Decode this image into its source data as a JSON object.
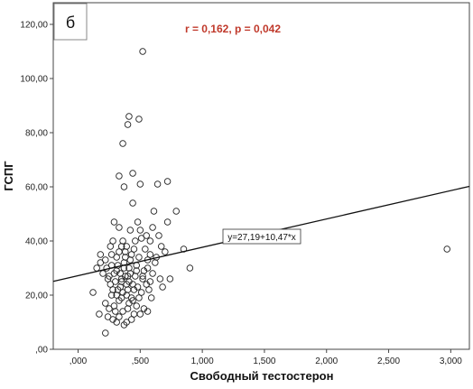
{
  "chart_data": {
    "type": "scatter",
    "panel_label": "б",
    "stats_text": "r = 0,162, p = 0,042",
    "xlabel": "Свободный тестостерон",
    "ylabel": "ГСПГ",
    "xlim": [
      -0.2,
      3.15
    ],
    "ylim": [
      0,
      128
    ],
    "x_ticks": [
      0,
      0.5,
      1,
      1.5,
      2,
      2.5,
      3
    ],
    "x_tick_labels": [
      ",000",
      ",500",
      "1,000",
      "1,500",
      "2,000",
      "2,500",
      "3,000"
    ],
    "y_ticks": [
      0,
      20,
      40,
      60,
      80,
      100,
      120
    ],
    "y_tick_labels": [
      ",00",
      "20,00",
      "40,00",
      "60,00",
      "80,00",
      "100,00",
      "120,00"
    ],
    "grid": false,
    "regression": {
      "intercept": 27.19,
      "slope": 10.47,
      "label": "y=27,19+10,47*x"
    },
    "points": [
      [
        0.52,
        110
      ],
      [
        0.41,
        86
      ],
      [
        0.4,
        83
      ],
      [
        0.49,
        85
      ],
      [
        0.36,
        76
      ],
      [
        0.44,
        65
      ],
      [
        0.33,
        64
      ],
      [
        0.37,
        60
      ],
      [
        0.5,
        61
      ],
      [
        0.64,
        61
      ],
      [
        0.72,
        62
      ],
      [
        0.79,
        51
      ],
      [
        0.61,
        51
      ],
      [
        0.44,
        54
      ],
      [
        0.29,
        47
      ],
      [
        0.33,
        45
      ],
      [
        0.42,
        44
      ],
      [
        0.55,
        42
      ],
      [
        0.65,
        42
      ],
      [
        0.72,
        47
      ],
      [
        0.26,
        38
      ],
      [
        0.28,
        40
      ],
      [
        0.35,
        38
      ],
      [
        0.39,
        38
      ],
      [
        0.46,
        40
      ],
      [
        0.51,
        41
      ],
      [
        0.58,
        40
      ],
      [
        0.67,
        38
      ],
      [
        0.7,
        36
      ],
      [
        0.85,
        37
      ],
      [
        0.9,
        30
      ],
      [
        2.97,
        37
      ],
      [
        0.18,
        35
      ],
      [
        0.22,
        33
      ],
      [
        0.31,
        34
      ],
      [
        0.38,
        36
      ],
      [
        0.43,
        35
      ],
      [
        0.49,
        34
      ],
      [
        0.56,
        33
      ],
      [
        0.62,
        32
      ],
      [
        0.23,
        30
      ],
      [
        0.27,
        31
      ],
      [
        0.32,
        31
      ],
      [
        0.37,
        32
      ],
      [
        0.41,
        30
      ],
      [
        0.47,
        31
      ],
      [
        0.53,
        29
      ],
      [
        0.6,
        28
      ],
      [
        0.15,
        30
      ],
      [
        0.2,
        28
      ],
      [
        0.25,
        27
      ],
      [
        0.29,
        28
      ],
      [
        0.34,
        28
      ],
      [
        0.38,
        27
      ],
      [
        0.42,
        28
      ],
      [
        0.46,
        27
      ],
      [
        0.52,
        26
      ],
      [
        0.58,
        25
      ],
      [
        0.66,
        26
      ],
      [
        0.74,
        26
      ],
      [
        0.3,
        25
      ],
      [
        0.35,
        25
      ],
      [
        0.39,
        24
      ],
      [
        0.44,
        24
      ],
      [
        0.48,
        23
      ],
      [
        0.55,
        24
      ],
      [
        0.28,
        22
      ],
      [
        0.32,
        22
      ],
      [
        0.36,
        21
      ],
      [
        0.4,
        22
      ],
      [
        0.45,
        22
      ],
      [
        0.51,
        21
      ],
      [
        0.57,
        22
      ],
      [
        0.27,
        20
      ],
      [
        0.31,
        20
      ],
      [
        0.35,
        19
      ],
      [
        0.39,
        20
      ],
      [
        0.43,
        19
      ],
      [
        0.49,
        19
      ],
      [
        0.12,
        21
      ],
      [
        0.33,
        18
      ],
      [
        0.41,
        17
      ],
      [
        0.47,
        16
      ],
      [
        0.53,
        15
      ],
      [
        0.22,
        17
      ],
      [
        0.25,
        15
      ],
      [
        0.3,
        14
      ],
      [
        0.36,
        14
      ],
      [
        0.4,
        15
      ],
      [
        0.45,
        13
      ],
      [
        0.5,
        13
      ],
      [
        0.56,
        14
      ],
      [
        0.17,
        13
      ],
      [
        0.24,
        12
      ],
      [
        0.33,
        12
      ],
      [
        0.39,
        10
      ],
      [
        0.43,
        11
      ],
      [
        0.28,
        11
      ],
      [
        0.31,
        10
      ],
      [
        0.37,
        9
      ],
      [
        0.22,
        6
      ],
      [
        0.35,
        26
      ],
      [
        0.42,
        33
      ],
      [
        0.63,
        34
      ],
      [
        0.6,
        45
      ],
      [
        0.26,
        24
      ],
      [
        0.37,
        30
      ],
      [
        0.54,
        37
      ],
      [
        0.47,
        29
      ],
      [
        0.33,
        36
      ],
      [
        0.18,
        32
      ],
      [
        0.59,
        19
      ],
      [
        0.68,
        23
      ],
      [
        0.48,
        47
      ],
      [
        0.4,
        27
      ],
      [
        0.29,
        16
      ],
      [
        0.44,
        18
      ],
      [
        0.34,
        23
      ],
      [
        0.52,
        27
      ],
      [
        0.24,
        26
      ],
      [
        0.38,
        34
      ],
      [
        0.45,
        37
      ],
      [
        0.56,
        30
      ],
      [
        0.31,
        29
      ],
      [
        0.41,
        25
      ],
      [
        0.36,
        40
      ],
      [
        0.5,
        44
      ],
      [
        0.27,
        35
      ],
      [
        0.58,
        35
      ]
    ]
  }
}
